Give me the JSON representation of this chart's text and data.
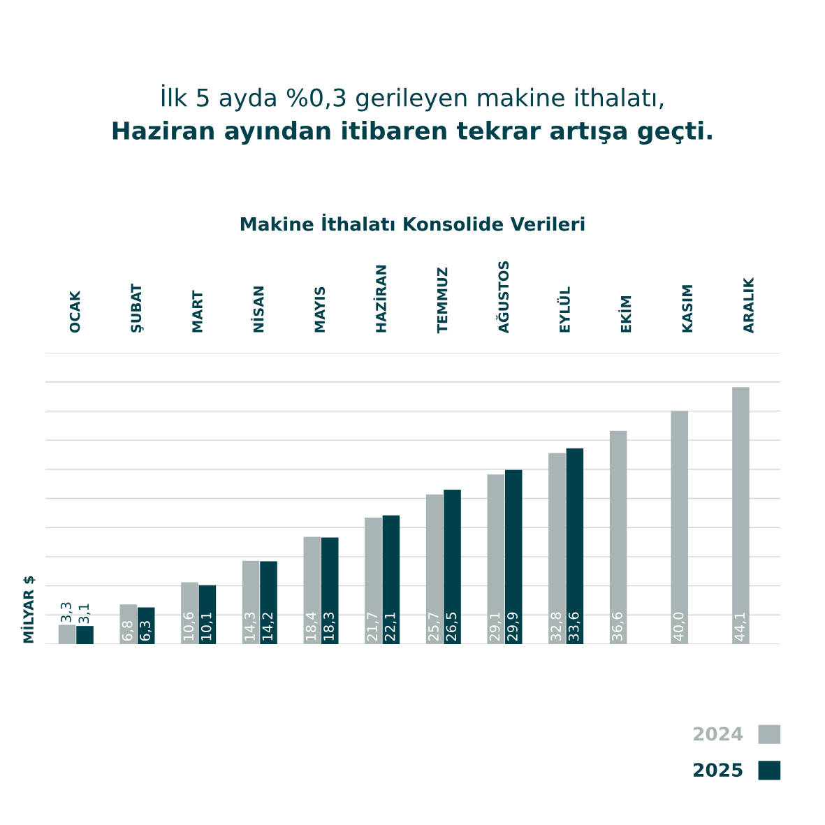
{
  "chart_data": {
    "type": "bar",
    "title": "İlk 5 ayda %0,3 gerileyen makine ithalatı,\nHaziran ayından itibaren tekrar artışa geçti.",
    "subtitle": "Makine İthalatı Konsolide Verileri",
    "ylabel": "MİLYAR $",
    "categories": [
      "OCAK",
      "ŞUBAT",
      "MART",
      "NİSAN",
      "MAYIS",
      "HAZİRAN",
      "TEMMUZ",
      "AĞUSTOS",
      "EYLÜL",
      "EKİM",
      "KASIM",
      "ARALIK"
    ],
    "series": [
      {
        "name": "2024",
        "color": "#a9b5b4",
        "values": [
          3.3,
          6.8,
          10.6,
          14.3,
          18.4,
          21.7,
          25.7,
          29.1,
          32.8,
          36.6,
          40.0,
          44.1
        ],
        "value_labels": [
          "3,3",
          "6,8",
          "10,6",
          "14,3",
          "18,4",
          "21,7",
          "25,7",
          "29,1",
          "32,8",
          "36,6",
          "40,0",
          "44,1"
        ]
      },
      {
        "name": "2025",
        "color": "#00404a",
        "values": [
          3.1,
          6.3,
          10.1,
          14.2,
          18.3,
          22.1,
          26.5,
          29.9,
          33.6,
          null,
          null,
          null
        ],
        "value_labels": [
          "3,1",
          "6,3",
          "10,1",
          "14,2",
          "18,3",
          "22,1",
          "26,5",
          "29,9",
          "33,6",
          null,
          null,
          null
        ]
      }
    ],
    "ylim": [
      0,
      50
    ],
    "yticks": [
      {
        "value": 0,
        "label": null
      },
      {
        "value": 5,
        "label": null
      },
      {
        "value": 10,
        "label": null
      },
      {
        "value": 15,
        "label": null
      },
      {
        "value": 20,
        "label": null
      },
      {
        "value": 25,
        "label": null
      },
      {
        "value": 30,
        "label": null
      },
      {
        "value": 35,
        "label": null
      },
      {
        "value": 40,
        "label": null
      },
      {
        "value": 45,
        "label": null
      },
      {
        "value": 50,
        "label": null
      }
    ],
    "tick_labels": "x",
    "grid": "y",
    "legend": "bottom right"
  }
}
